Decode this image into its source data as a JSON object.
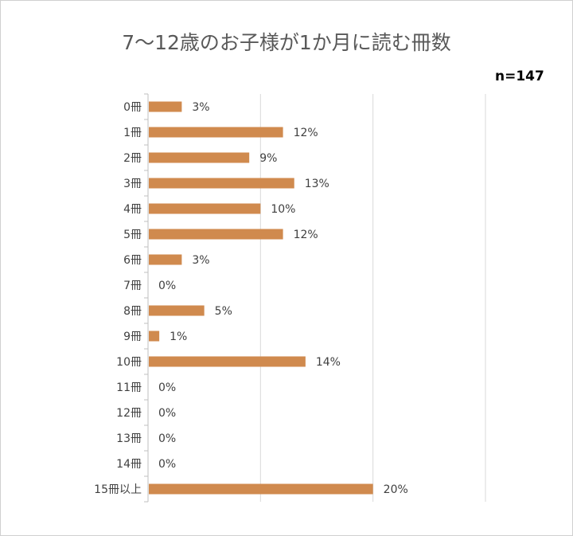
{
  "chart_data": {
    "type": "bar",
    "orientation": "horizontal",
    "title": "7〜12歳のお子様が1か月に読む冊数",
    "annotation": "n=147",
    "categories": [
      "0冊",
      "1冊",
      "2冊",
      "3冊",
      "4冊",
      "5冊",
      "6冊",
      "7冊",
      "8冊",
      "9冊",
      "10冊",
      "11冊",
      "12冊",
      "13冊",
      "14冊",
      "15冊以上"
    ],
    "values": [
      3,
      12,
      9,
      13,
      10,
      12,
      3,
      0,
      5,
      1,
      14,
      0,
      0,
      0,
      0,
      20
    ],
    "data_labels": [
      "3%",
      "12%",
      "9%",
      "13%",
      "10%",
      "12%",
      "3%",
      "0%",
      "5%",
      "1%",
      "14%",
      "0%",
      "0%",
      "0%",
      "0%",
      "20%"
    ],
    "xlim": [
      0,
      30
    ],
    "x_gridlines": [
      10,
      20,
      30
    ],
    "x_tick_labels_shown": false,
    "grid": true,
    "legend": "none",
    "bar_color": "#D08A4E"
  }
}
